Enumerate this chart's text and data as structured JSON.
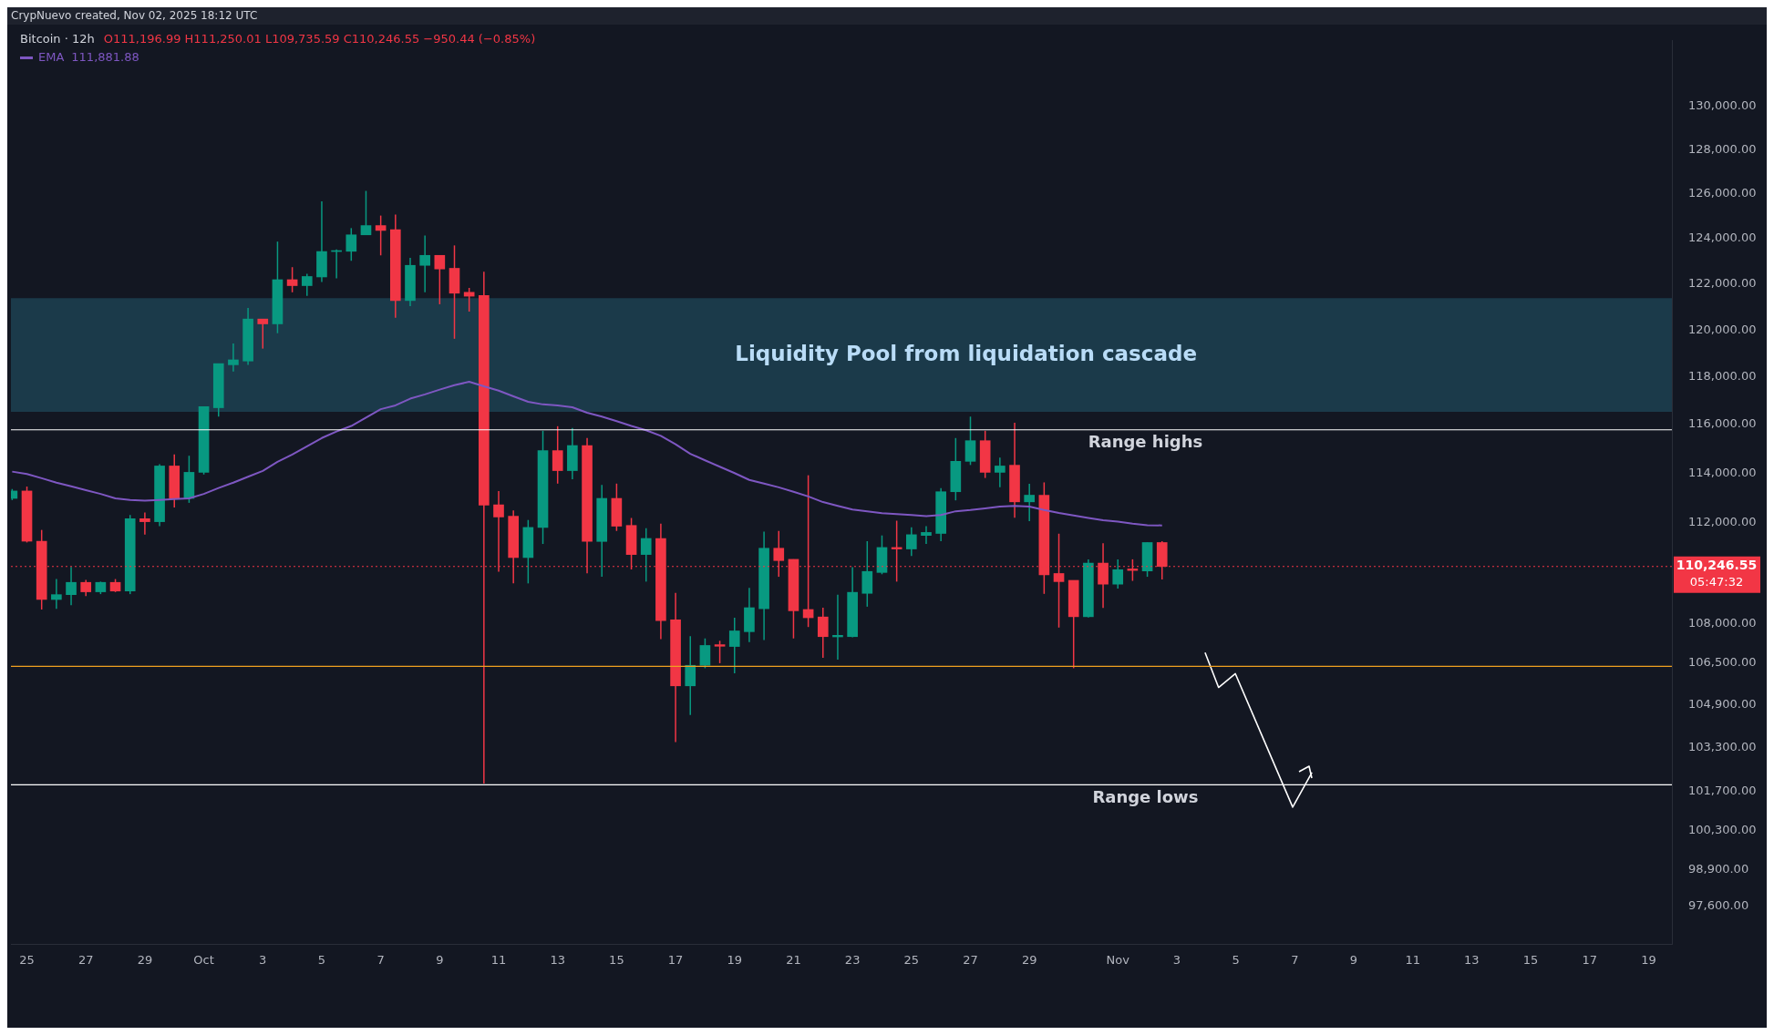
{
  "chart_data": {
    "type": "candlestick",
    "title": "Bitcoin · 12h",
    "subtitle": "O111,196.99 H111,250.01 L109,735.59 C110,246.55 −950.44 (−0.85%)",
    "annotations": [
      "CrypNuevo created, Nov 02, 2025 18:12 UTC",
      "05:47:32",
      "111,881.88"
    ],
    "x": [
      "2025-09-24T12:00",
      "2025-09-25T00:00",
      "2025-09-25T12:00",
      "2025-09-26T00:00",
      "2025-09-26T12:00",
      "2025-09-27T00:00",
      "2025-09-27T12:00",
      "2025-09-28T00:00",
      "2025-09-28T12:00",
      "2025-09-29T00:00",
      "2025-09-29T12:00",
      "2025-09-30T00:00",
      "2025-09-30T12:00",
      "2025-10-01T00:00",
      "2025-10-01T12:00",
      "2025-10-02T00:00",
      "2025-10-02T12:00",
      "2025-10-03T00:00",
      "2025-10-03T12:00",
      "2025-10-04T00:00",
      "2025-10-04T12:00",
      "2025-10-05T00:00",
      "2025-10-05T12:00",
      "2025-10-06T00:00",
      "2025-10-06T12:00",
      "2025-10-07T00:00",
      "2025-10-07T12:00",
      "2025-10-08T00:00",
      "2025-10-08T12:00",
      "2025-10-09T00:00",
      "2025-10-09T12:00",
      "2025-10-10T00:00",
      "2025-10-10T12:00",
      "2025-10-11T00:00",
      "2025-10-11T12:00",
      "2025-10-12T00:00",
      "2025-10-12T12:00",
      "2025-10-13T00:00",
      "2025-10-13T12:00",
      "2025-10-14T00:00",
      "2025-10-14T12:00",
      "2025-10-15T00:00",
      "2025-10-15T12:00",
      "2025-10-16T00:00",
      "2025-10-16T12:00",
      "2025-10-17T00:00",
      "2025-10-17T12:00",
      "2025-10-18T00:00",
      "2025-10-18T12:00",
      "2025-10-19T00:00",
      "2025-10-19T12:00",
      "2025-10-20T00:00",
      "2025-10-20T12:00",
      "2025-10-21T00:00",
      "2025-10-21T12:00",
      "2025-10-22T00:00",
      "2025-10-22T12:00",
      "2025-10-23T00:00",
      "2025-10-23T12:00",
      "2025-10-24T00:00",
      "2025-10-24T12:00",
      "2025-10-25T00:00",
      "2025-10-25T12:00",
      "2025-10-26T00:00",
      "2025-10-26T12:00",
      "2025-10-27T00:00",
      "2025-10-27T12:00",
      "2025-10-28T00:00",
      "2025-10-28T12:00",
      "2025-10-29T00:00",
      "2025-10-29T12:00",
      "2025-10-30T00:00",
      "2025-10-30T12:00",
      "2025-10-31T00:00",
      "2025-10-31T12:00",
      "2025-11-01T00:00",
      "2025-11-01T12:00",
      "2025-11-02T00:00",
      "2025-11-02T12:00"
    ],
    "ohlc": [
      [
        112970,
        113350,
        112900,
        113270
      ],
      [
        113270,
        113450,
        111200,
        111250
      ],
      [
        111250,
        111700,
        108560,
        108950
      ],
      [
        108950,
        109750,
        108590,
        109140
      ],
      [
        109140,
        110230,
        108730,
        109620
      ],
      [
        109620,
        109720,
        109080,
        109250
      ],
      [
        109250,
        109650,
        109160,
        109620
      ],
      [
        109620,
        109750,
        109240,
        109280
      ],
      [
        109280,
        112300,
        109160,
        112150
      ],
      [
        112150,
        112400,
        111510,
        112030
      ],
      [
        112030,
        114360,
        111850,
        114290
      ],
      [
        114290,
        114760,
        112600,
        112970
      ],
      [
        112970,
        114710,
        112790,
        114030
      ],
      [
        114030,
        116750,
        113940,
        116750
      ],
      [
        116700,
        118560,
        116330,
        118560
      ],
      [
        118510,
        119420,
        118230,
        118720
      ],
      [
        118670,
        120950,
        118510,
        120470
      ],
      [
        120470,
        120470,
        119200,
        120260
      ],
      [
        120260,
        123860,
        119860,
        122180
      ],
      [
        122180,
        122730,
        121630,
        121920
      ],
      [
        121920,
        122440,
        121470,
        122320
      ],
      [
        122300,
        125660,
        122080,
        123420
      ],
      [
        123420,
        123510,
        122240,
        123460
      ],
      [
        123430,
        124460,
        123010,
        124160
      ],
      [
        124160,
        126130,
        124160,
        124570
      ],
      [
        124570,
        125020,
        123250,
        124360
      ],
      [
        124390,
        125070,
        120530,
        121270
      ],
      [
        121270,
        123140,
        121030,
        122810
      ],
      [
        122810,
        124130,
        121630,
        123250
      ],
      [
        123250,
        123250,
        121110,
        122650
      ],
      [
        122680,
        123690,
        119620,
        121590
      ],
      [
        121630,
        121820,
        120790,
        121460
      ],
      [
        121490,
        122530,
        102000,
        112700
      ],
      [
        112710,
        113270,
        110040,
        112220
      ],
      [
        112250,
        112480,
        109580,
        110600
      ],
      [
        110600,
        112100,
        109580,
        111800
      ],
      [
        111800,
        115740,
        111140,
        114920
      ],
      [
        114920,
        115930,
        113570,
        114100
      ],
      [
        114100,
        115860,
        113750,
        115130
      ],
      [
        115130,
        115440,
        109980,
        111240
      ],
      [
        111240,
        113520,
        109840,
        112970
      ],
      [
        112970,
        113570,
        111660,
        111850
      ],
      [
        111880,
        112180,
        110130,
        110720
      ],
      [
        110720,
        111770,
        109650,
        111360
      ],
      [
        111360,
        111950,
        107410,
        108130
      ],
      [
        108160,
        109210,
        103520,
        105630
      ],
      [
        105630,
        107530,
        104530,
        106410
      ],
      [
        106410,
        107440,
        106300,
        107170
      ],
      [
        107200,
        107350,
        106490,
        107140
      ],
      [
        107130,
        108240,
        106110,
        107730
      ],
      [
        107700,
        109400,
        107300,
        108630
      ],
      [
        108590,
        111630,
        107380,
        110970
      ],
      [
        110970,
        111660,
        109840,
        110480
      ],
      [
        110530,
        110530,
        107440,
        108510
      ],
      [
        108560,
        113910,
        107880,
        108240
      ],
      [
        108270,
        108630,
        106700,
        107510
      ],
      [
        107500,
        109140,
        106630,
        107560
      ],
      [
        107510,
        110220,
        107480,
        109230
      ],
      [
        109190,
        111250,
        108670,
        110050
      ],
      [
        110010,
        111480,
        109940,
        111000
      ],
      [
        111000,
        112070,
        109650,
        110940
      ],
      [
        110940,
        111810,
        110660,
        111510
      ],
      [
        111480,
        111850,
        111140,
        111600
      ],
      [
        111560,
        113390,
        111250,
        113240
      ],
      [
        113240,
        115440,
        112890,
        114480
      ],
      [
        114480,
        116330,
        114330,
        115330
      ],
      [
        115330,
        115740,
        113800,
        114030
      ],
      [
        114030,
        114630,
        113420,
        114290
      ],
      [
        114320,
        116070,
        112190,
        112830
      ],
      [
        112830,
        113560,
        112050,
        113100
      ],
      [
        113100,
        113620,
        109170,
        109920
      ],
      [
        109970,
        111550,
        107860,
        109650
      ],
      [
        109700,
        109700,
        106300,
        108280
      ],
      [
        108280,
        110530,
        108250,
        110380
      ],
      [
        110380,
        111170,
        108620,
        109550
      ],
      [
        109550,
        110530,
        109380,
        110120
      ],
      [
        110150,
        110530,
        109680,
        110090
      ],
      [
        110070,
        111200,
        109840,
        111197
      ],
      [
        111196.99,
        111250.01,
        109735.59,
        110246.55
      ]
    ],
    "colors": [
      "#089981",
      "#f23645",
      "#f23645",
      "#089981",
      "#089981",
      "#f23645",
      "#089981",
      "#f23645",
      "#089981",
      "#f23645",
      "#089981",
      "#f23645",
      "#089981",
      "#089981",
      "#089981",
      "#089981",
      "#089981",
      "#f23645",
      "#089981",
      "#f23645",
      "#089981",
      "#089981",
      "#089981",
      "#089981",
      "#089981",
      "#f23645",
      "#f23645",
      "#089981",
      "#089981",
      "#f23645",
      "#f23645",
      "#f23645",
      "#f23645",
      "#f23645",
      "#f23645",
      "#089981",
      "#089981",
      "#f23645",
      "#089981",
      "#f23645",
      "#089981",
      "#f23645",
      "#f23645",
      "#089981",
      "#f23645",
      "#f23645",
      "#089981",
      "#089981",
      "#f23645",
      "#089981",
      "#089981",
      "#089981",
      "#f23645",
      "#f23645",
      "#f23645",
      "#f23645",
      "#089981",
      "#089981",
      "#089981",
      "#089981",
      "#f23645",
      "#089981",
      "#089981",
      "#089981",
      "#089981",
      "#089981",
      "#f23645",
      "#089981",
      "#f23645",
      "#089981",
      "#f23645",
      "#f23645",
      "#f23645",
      "#089981",
      "#f23645",
      "#089981",
      "#f23645",
      "#089981",
      "#f23645"
    ],
    "series": [
      {
        "name": "EMA",
        "type": "line",
        "color": "#7e57c2",
        "values": [
          114060,
          113960,
          113790,
          113610,
          113460,
          113300,
          113150,
          112970,
          112910,
          112880,
          112910,
          112940,
          112970,
          113150,
          113390,
          113610,
          113850,
          114090,
          114460,
          114760,
          115100,
          115440,
          115710,
          115940,
          116290,
          116640,
          116800,
          117080,
          117260,
          117460,
          117650,
          117790,
          117600,
          117420,
          117180,
          116950,
          116840,
          116800,
          116720,
          116490,
          116330,
          116140,
          115940,
          115760,
          115530,
          115180,
          114790,
          114520,
          114260,
          114000,
          113720,
          113570,
          113420,
          113240,
          113050,
          112820,
          112670,
          112520,
          112450,
          112370,
          112340,
          112300,
          112250,
          112300,
          112450,
          112500,
          112570,
          112640,
          112670,
          112640,
          112500,
          112380,
          112280,
          112180,
          112090,
          112030,
          111950,
          111890,
          111881.88
        ]
      },
      {
        "type": "line",
        "color": "#ffffff",
        "x": [
          "2025-11-03T23:00",
          "2025-11-04T10:00",
          "2025-11-04T23:40",
          "2025-11-06T22:20",
          "2025-11-07T14:00"
        ],
        "values": [
          106900,
          105570,
          106090,
          101140,
          102400
        ]
      }
    ],
    "legend": "top left",
    "marker": "none",
    "log": "y",
    "xlim": [
      "2025-09-24T11:00",
      "2025-11-19T19:00"
    ],
    "xticks": [
      {
        "value": "2025-09-25",
        "label": "25"
      },
      {
        "value": "2025-09-27",
        "label": "27"
      },
      {
        "value": "2025-09-29",
        "label": "29"
      },
      {
        "value": "2025-10-01",
        "label": "Oct"
      },
      {
        "value": "2025-10-03",
        "label": "3"
      },
      {
        "value": "2025-10-05",
        "label": "5"
      },
      {
        "value": "2025-10-07",
        "label": "7"
      },
      {
        "value": "2025-10-09",
        "label": "9"
      },
      {
        "value": "2025-10-11",
        "label": "11"
      },
      {
        "value": "2025-10-13",
        "label": "13"
      },
      {
        "value": "2025-10-15",
        "label": "15"
      },
      {
        "value": "2025-10-17",
        "label": "17"
      },
      {
        "value": "2025-10-19",
        "label": "19"
      },
      {
        "value": "2025-10-21",
        "label": "21"
      },
      {
        "value": "2025-10-23",
        "label": "23"
      },
      {
        "value": "2025-10-25",
        "label": "25"
      },
      {
        "value": "2025-10-27",
        "label": "27"
      },
      {
        "value": "2025-10-29",
        "label": "29"
      },
      {
        "value": "2025-11-01",
        "label": "Nov"
      },
      {
        "value": "2025-11-03",
        "label": "3"
      },
      {
        "value": "2025-11-05",
        "label": "5"
      },
      {
        "value": "2025-11-07",
        "label": "7"
      },
      {
        "value": "2025-11-09",
        "label": "9"
      },
      {
        "value": "2025-11-11",
        "label": "11"
      },
      {
        "value": "2025-11-13",
        "label": "13"
      },
      {
        "value": "2025-11-15",
        "label": "15"
      },
      {
        "value": "2025-11-17",
        "label": "17"
      },
      {
        "value": "2025-11-19",
        "label": "19"
      }
    ],
    "ylim": [
      96300,
      133100
    ],
    "yticks": [
      {
        "value": 130000,
        "label": "130,000.00"
      },
      {
        "value": 128000,
        "label": "128,000.00"
      },
      {
        "value": 126000,
        "label": "126,000.00"
      },
      {
        "value": 124000,
        "label": "124,000.00"
      },
      {
        "value": 122000,
        "label": "122,000.00"
      },
      {
        "value": 120000,
        "label": "120,000.00"
      },
      {
        "value": 118000,
        "label": "118,000.00"
      },
      {
        "value": 116000,
        "label": "116,000.00"
      },
      {
        "value": 114000,
        "label": "114,000.00"
      },
      {
        "value": 112000,
        "label": "112,000.00"
      },
      {
        "value": 108000,
        "label": "108,000.00"
      },
      {
        "value": 106500,
        "label": "106,500.00"
      },
      {
        "value": 104900,
        "label": "104,900.00"
      },
      {
        "value": 103300,
        "label": "103,300.00"
      },
      {
        "value": 101700,
        "label": "101,700.00"
      },
      {
        "value": 100300,
        "label": "100,300.00"
      },
      {
        "value": 98900,
        "label": "98,900.00"
      },
      {
        "value": 97600,
        "label": "97,600.00"
      }
    ],
    "bands": [
      {
        "axis": "y",
        "from": 116530,
        "to": 121370,
        "label": "Liquidity Pool from liquidation cascade",
        "color": "#1b3a4a"
      }
    ],
    "ref_lines": [
      {
        "axis": "y",
        "value": 115780,
        "label": "Range highs",
        "color": "#ffffff"
      },
      {
        "axis": "y",
        "value": 101950,
        "label": "Range lows",
        "color": "#ffffff"
      },
      {
        "axis": "y",
        "value": 106370,
        "color": "#f0a020"
      },
      {
        "axis": "y",
        "value": 110246.55,
        "label": "110,246.55",
        "color": "#f23645",
        "line_style": "dotted"
      }
    ]
  }
}
